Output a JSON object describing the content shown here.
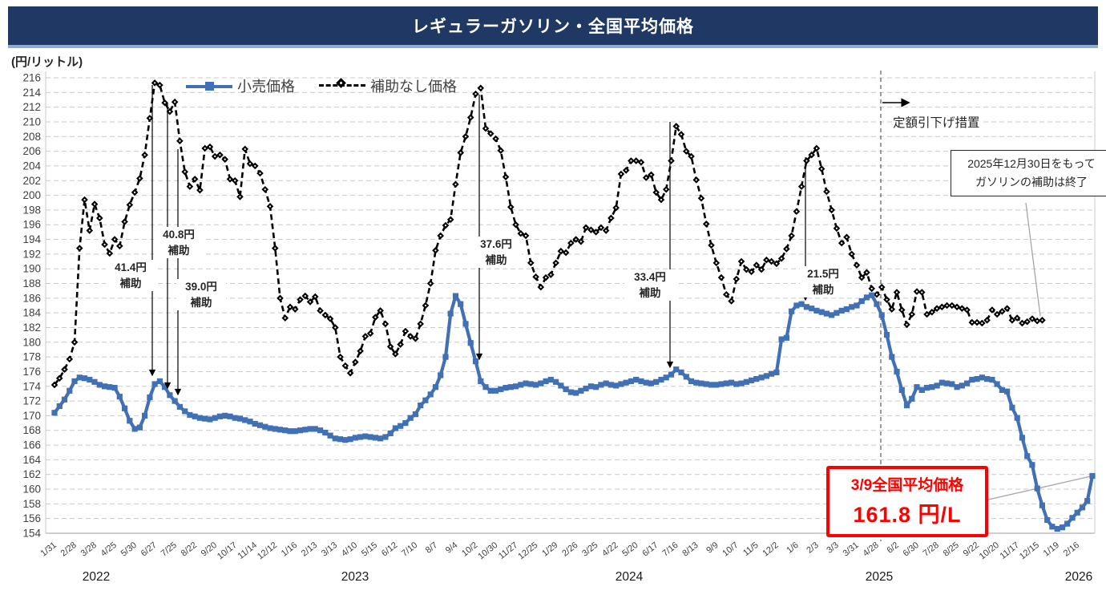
{
  "title": "レギュラーガソリン・全国平均価格",
  "y_axis_unit": "(円/リットル)",
  "legend": {
    "retail": "小売価格",
    "unsubsidized": "補助なし価格"
  },
  "colors": {
    "banner_bg": "#1F3864",
    "banner_strip": "#8EAADB",
    "retail_line": "#4170B4",
    "unsubsidized_line": "#000000",
    "grid": "#C9C9C9",
    "axis": "#BFBFBF",
    "leader": "#A6A6A6",
    "alert_red": "#FF0000"
  },
  "annotations": {
    "subsidy_labels": [
      {
        "value_line": "41.4円",
        "unit_line": "補助"
      },
      {
        "value_line": "40.8円",
        "unit_line": "補助"
      },
      {
        "value_line": "39.0円",
        "unit_line": "補助"
      },
      {
        "value_line": "37.6円",
        "unit_line": "補助"
      },
      {
        "value_line": "33.4円",
        "unit_line": "補助"
      },
      {
        "value_line": "21.5円",
        "unit_line": "補助"
      }
    ],
    "teigaku": "定額引下げ措置",
    "end_box": {
      "line1": "2025年12月30日をもって",
      "line2": "ガソリンの補助は終了"
    },
    "price_box": {
      "line1": "3/9全国平均価格",
      "line2": "161.8 円/L"
    }
  },
  "chart_data": {
    "type": "line",
    "title": "レギュラーガソリン・全国平均価格",
    "ylabel": "(円/リットル)",
    "ylim": [
      154,
      216
    ],
    "y_step": 2,
    "grid": "on",
    "legend_position": "top",
    "points_per_tick": 4,
    "x_tick_labels": [
      "1/31",
      "2/28",
      "3/28",
      "4/25",
      "5/30",
      "6/27",
      "7/25",
      "8/22",
      "9/20",
      "10/17",
      "11/14",
      "12/12",
      "1/16",
      "2/13",
      "3/13",
      "4/10",
      "5/15",
      "6/12",
      "7/10",
      "8/7",
      "9/4",
      "10/2",
      "10/30",
      "11/27",
      "12/25",
      "1/29",
      "2/26",
      "3/25",
      "4/22",
      "5/20",
      "6/17",
      "7/16",
      "8/13",
      "9/9",
      "10/7",
      "11/5",
      "12/2",
      "1/6",
      "2/3",
      "3/3",
      "3/31",
      "4/28",
      "6/2",
      "6/30",
      "7/28",
      "8/25",
      "9/22",
      "10/20",
      "11/17",
      "12/15",
      "1/19",
      "2/16"
    ],
    "year_labels": [
      "2022",
      "2023",
      "2024",
      "2025",
      "2026"
    ],
    "series": [
      {
        "name": "小売価格",
        "color": "#4170B4",
        "marker": "square",
        "line": "solid",
        "values": [
          170.4,
          171.3,
          172.2,
          173.4,
          174.7,
          175.2,
          175.1,
          174.9,
          174.6,
          174.2,
          174.0,
          173.9,
          173.8,
          172.6,
          171.0,
          169.3,
          168.2,
          168.4,
          170.0,
          172.5,
          174.3,
          174.7,
          173.9,
          172.8,
          172.0,
          171.2,
          170.6,
          170.1,
          169.9,
          169.7,
          169.6,
          169.5,
          169.7,
          169.9,
          170.0,
          169.9,
          169.7,
          169.6,
          169.4,
          169.2,
          168.9,
          168.7,
          168.5,
          168.3,
          168.2,
          168.1,
          168.0,
          167.9,
          167.9,
          168.0,
          168.1,
          168.2,
          168.2,
          168.0,
          167.7,
          167.3,
          166.9,
          166.8,
          166.7,
          166.8,
          167.0,
          167.1,
          167.2,
          167.1,
          167.0,
          166.9,
          167.1,
          167.6,
          168.3,
          168.6,
          169.0,
          169.7,
          170.2,
          171.4,
          172.1,
          172.9,
          173.9,
          175.5,
          178.0,
          183.9,
          186.3,
          185.2,
          182.5,
          179.9,
          177.4,
          174.7,
          173.9,
          173.4,
          173.4,
          173.6,
          173.8,
          173.9,
          174.0,
          174.2,
          174.4,
          174.3,
          174.2,
          174.4,
          174.7,
          174.9,
          174.6,
          174.1,
          173.6,
          173.2,
          173.1,
          173.4,
          173.7,
          174.0,
          173.9,
          174.2,
          174.4,
          174.2,
          174.1,
          174.3,
          174.5,
          174.7,
          174.9,
          174.7,
          174.5,
          174.4,
          174.6,
          174.9,
          175.2,
          175.6,
          176.3,
          175.9,
          175.3,
          174.7,
          174.5,
          174.4,
          174.3,
          174.2,
          174.2,
          174.3,
          174.4,
          174.5,
          174.3,
          174.4,
          174.6,
          174.8,
          175.0,
          175.2,
          175.4,
          175.7,
          175.9,
          180.4,
          180.6,
          184.2,
          185.0,
          185.2,
          184.8,
          184.6,
          184.3,
          184.1,
          183.9,
          183.7,
          184.0,
          184.3,
          184.5,
          184.8,
          185.0,
          185.6,
          186.1,
          186.4,
          185.2,
          183.7,
          181.0,
          178.0,
          176.0,
          173.5,
          171.4,
          172.3,
          173.9,
          173.5,
          173.8,
          173.9,
          174.1,
          174.5,
          174.4,
          174.3,
          173.9,
          174.1,
          174.4,
          174.9,
          175.0,
          175.2,
          175.0,
          174.9,
          174.3,
          173.5,
          173.3,
          171.1,
          169.7,
          167.0,
          164.5,
          163.3,
          160.1,
          157.8,
          155.8,
          154.9,
          154.6,
          154.8,
          155.3,
          156.1,
          156.8,
          157.5,
          158.4,
          161.8
        ]
      },
      {
        "name": "補助なし価格",
        "color": "#000000",
        "marker": "diamond",
        "line": "dashed",
        "values": [
          174.2,
          175.1,
          176.3,
          177.7,
          180.0,
          192.8,
          199.4,
          195.2,
          198.8,
          196.9,
          193.3,
          192.1,
          194.0,
          193.1,
          196.4,
          198.7,
          200.4,
          202.3,
          205.5,
          210.5,
          215.3,
          215.0,
          212.6,
          211.4,
          212.7,
          207.4,
          203.2,
          201.2,
          202.2,
          200.7,
          206.4,
          206.6,
          205.3,
          205.5,
          204.9,
          202.2,
          202.0,
          199.8,
          206.3,
          204.3,
          204.0,
          203.0,
          200.8,
          198.5,
          192.8,
          186.0,
          183.3,
          184.8,
          184.5,
          185.8,
          186.3,
          185.5,
          186.2,
          184.3,
          183.7,
          183.2,
          182.0,
          178.0,
          176.8,
          175.8,
          177.3,
          178.8,
          180.8,
          181.2,
          183.4,
          184.3,
          182.5,
          179.4,
          178.4,
          179.7,
          181.5,
          180.8,
          180.5,
          182.5,
          185.0,
          188.0,
          192.5,
          194.5,
          195.9,
          196.7,
          201.5,
          205.8,
          208.0,
          210.6,
          213.8,
          214.6,
          209.1,
          208.4,
          207.7,
          206.1,
          202.5,
          198.4,
          196.0,
          194.8,
          194.5,
          190.8,
          188.9,
          187.5,
          188.8,
          189.2,
          190.8,
          192.4,
          192.2,
          193.5,
          194.0,
          193.7,
          195.6,
          195.3,
          195.0,
          195.6,
          195.2,
          196.9,
          198.3,
          202.9,
          203.4,
          204.7,
          204.7,
          204.5,
          202.4,
          202.8,
          200.4,
          199.4,
          200.8,
          204.7,
          209.4,
          208.3,
          206.0,
          205.3,
          202.1,
          199.6,
          196.1,
          193.2,
          190.8,
          188.8,
          186.5,
          185.6,
          188.6,
          191.0,
          189.9,
          189.6,
          190.5,
          189.9,
          191.2,
          191.0,
          190.7,
          191.4,
          192.7,
          194.5,
          197.8,
          201.2,
          204.7,
          205.5,
          206.4,
          203.6,
          200.5,
          198.0,
          195.5,
          193.5,
          194.3,
          192.0,
          190.5,
          188.8,
          189.5,
          187.3,
          186.5,
          187.5,
          185.8,
          184.5,
          186.8,
          184.4,
          182.4,
          183.8,
          186.9,
          186.8,
          183.8,
          184.1,
          184.6,
          184.8,
          185.0,
          185.0,
          184.8,
          184.6,
          184.4,
          182.7,
          182.7,
          182.6,
          183.0,
          184.4,
          183.8,
          184.2,
          184.6,
          183.0,
          183.3,
          182.6,
          182.8,
          183.2,
          182.9,
          183.0
        ]
      }
    ]
  }
}
